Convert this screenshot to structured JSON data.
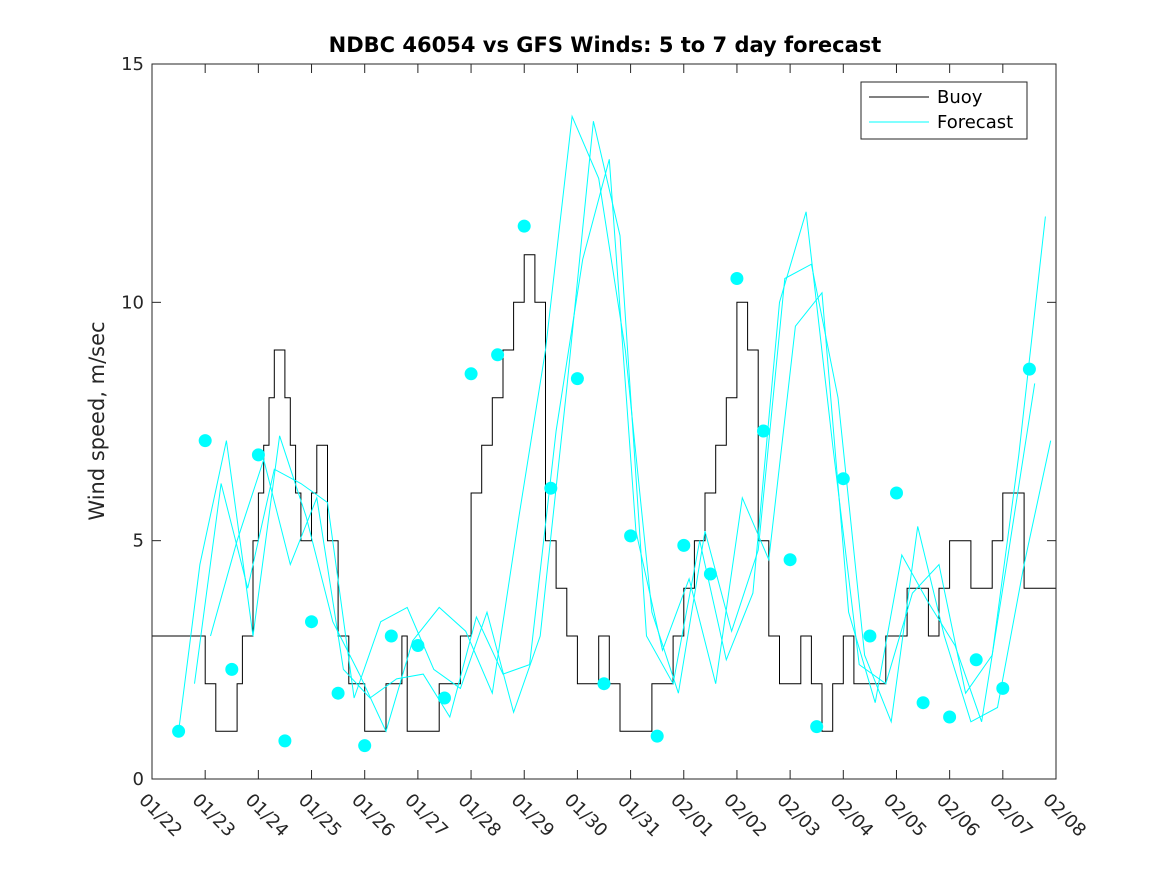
{
  "chart_data": {
    "type": "line",
    "title": "NDBC 46054 vs GFS Winds: 5 to 7 day forecast",
    "xlabel": "",
    "ylabel": "Wind speed, m/sec",
    "ylim": [
      0,
      15
    ],
    "xlim": [
      0,
      17
    ],
    "x_units": "days since 01/22",
    "yticks": [
      0,
      5,
      10,
      15
    ],
    "yticklabels": [
      "0",
      "5",
      "10",
      "15"
    ],
    "xticklabels": [
      "01/22",
      "01/23",
      "01/24",
      "01/25",
      "01/26",
      "01/27",
      "01/28",
      "01/29",
      "01/30",
      "01/31",
      "02/01",
      "02/02",
      "02/03",
      "02/04",
      "02/05",
      "02/06",
      "02/07",
      "02/08"
    ],
    "legend": {
      "location": "top-right",
      "entries": [
        "Buoy",
        "Forecast"
      ]
    },
    "colors": {
      "buoy": "#000000",
      "forecast": "#00ffff",
      "axes": "#262626"
    },
    "series": [
      {
        "name": "Buoy",
        "style": "step",
        "color": "#000000",
        "x": [
          0.0,
          0.3,
          0.6,
          0.9,
          1.0,
          1.2,
          1.4,
          1.6,
          1.7,
          1.9,
          2.0,
          2.1,
          2.2,
          2.3,
          2.5,
          2.6,
          2.7,
          2.8,
          3.0,
          3.1,
          3.2,
          3.3,
          3.5,
          3.7,
          3.9,
          4.0,
          4.2,
          4.4,
          4.6,
          4.7,
          4.8,
          5.0,
          5.2,
          5.4,
          5.6,
          5.8,
          6.0,
          6.2,
          6.4,
          6.6,
          6.8,
          7.0,
          7.2,
          7.4,
          7.6,
          7.8,
          8.0,
          8.2,
          8.4,
          8.6,
          8.8,
          9.0,
          9.2,
          9.4,
          9.6,
          9.8,
          10.0,
          10.2,
          10.4,
          10.6,
          10.8,
          11.0,
          11.2,
          11.4,
          11.6,
          11.8,
          12.0,
          12.2,
          12.4,
          12.6,
          12.8,
          13.0,
          13.2,
          13.4,
          13.6,
          13.8,
          14.0,
          14.2,
          14.4,
          14.6,
          14.8,
          15.0,
          15.2,
          15.4,
          15.6,
          15.8,
          16.0,
          16.2,
          16.4
        ],
        "values": [
          3,
          3,
          3,
          3,
          2,
          1,
          1,
          2,
          3,
          5,
          6,
          7,
          8,
          9,
          8,
          7,
          6,
          5,
          6,
          7,
          7,
          5,
          3,
          2,
          2,
          1,
          1,
          2,
          2,
          3,
          1,
          1,
          1,
          2,
          2,
          3,
          6,
          7,
          8,
          9,
          10,
          11,
          10,
          5,
          4,
          3,
          2,
          2,
          3,
          2,
          1,
          1,
          1,
          2,
          2,
          3,
          4,
          5,
          6,
          7,
          8,
          10,
          9,
          5,
          3,
          2,
          2,
          3,
          2,
          1,
          2,
          3,
          2,
          2,
          2,
          3,
          3,
          4,
          4,
          3,
          4,
          5,
          5,
          4,
          4,
          5,
          6,
          6,
          4
        ]
      },
      {
        "name": "Forecast",
        "style": "line",
        "color": "#00ffff",
        "x": [
          0.5,
          0.9,
          1.4,
          1.9,
          2.4,
          2.9,
          3.4,
          3.9,
          4.4,
          4.9,
          5.4,
          5.9,
          6.4,
          6.9,
          7.4,
          7.9,
          8.4,
          8.9,
          9.4,
          9.9,
          10.4,
          10.9,
          11.4,
          11.9,
          12.4,
          12.9,
          13.4,
          13.9,
          14.4,
          14.9,
          15.4,
          15.9,
          16.4,
          16.9
        ],
        "values": [
          1.0,
          4.5,
          7.1,
          3.0,
          7.2,
          5.5,
          3.3,
          2.2,
          1.0,
          2.9,
          3.6,
          3.1,
          1.8,
          5.5,
          9.0,
          13.9,
          12.6,
          9.0,
          3.5,
          1.8,
          5.2,
          3.1,
          4.8,
          10.5,
          10.8,
          8.0,
          2.6,
          1.2,
          5.3,
          3.0,
          1.2,
          1.5,
          4.5,
          7.1
        ]
      },
      {
        "name": "Forecast",
        "style": "line",
        "color": "#00ffff",
        "x": [
          0.8,
          1.3,
          1.8,
          2.3,
          2.8,
          3.3,
          3.8,
          4.3,
          4.8,
          5.3,
          5.8,
          6.3,
          6.8,
          7.3,
          7.8,
          8.3,
          8.8,
          9.3,
          9.8,
          10.3,
          10.8,
          11.3,
          11.8,
          12.3,
          12.8,
          13.3,
          13.8,
          14.3,
          14.8,
          15.3,
          15.8,
          16.3,
          16.8
        ],
        "values": [
          2.0,
          6.2,
          4.0,
          6.5,
          6.2,
          5.8,
          1.7,
          3.3,
          3.6,
          2.3,
          1.9,
          3.5,
          1.4,
          3.0,
          8.2,
          13.8,
          11.4,
          3.0,
          2.0,
          5.0,
          2.5,
          3.9,
          10.0,
          11.9,
          7.0,
          2.4,
          2.0,
          3.9,
          4.5,
          1.8,
          2.6,
          6.8,
          11.8
        ]
      },
      {
        "name": "Forecast",
        "style": "line",
        "color": "#00ffff",
        "x": [
          1.1,
          1.6,
          2.1,
          2.6,
          3.1,
          3.6,
          4.1,
          4.6,
          5.1,
          5.6,
          6.1,
          6.6,
          7.1,
          7.6,
          8.1,
          8.6,
          9.1,
          9.6,
          10.1,
          10.6,
          11.1,
          11.6,
          12.1,
          12.6,
          13.1,
          13.6,
          14.1,
          14.6,
          15.1,
          15.6,
          16.1,
          16.6
        ],
        "values": [
          3.0,
          5.0,
          6.7,
          4.5,
          5.9,
          2.3,
          1.7,
          2.1,
          2.2,
          1.3,
          3.4,
          2.2,
          2.4,
          7.3,
          10.9,
          13.0,
          5.2,
          2.7,
          4.2,
          2.0,
          5.9,
          4.6,
          9.5,
          10.2,
          3.5,
          1.6,
          4.7,
          3.7,
          2.8,
          1.2,
          4.7,
          8.3
        ]
      }
    ],
    "markers": {
      "name": "Forecast",
      "style": "dot",
      "color": "#00ffff",
      "x": [
        0.5,
        1.0,
        1.5,
        2.0,
        2.5,
        3.0,
        3.5,
        4.0,
        4.5,
        5.0,
        5.5,
        6.0,
        6.5,
        7.0,
        7.5,
        8.0,
        8.5,
        9.0,
        9.5,
        10.0,
        10.5,
        11.0,
        11.5,
        12.0,
        12.5,
        13.0,
        13.5,
        14.0,
        14.5,
        15.0,
        15.5,
        16.0,
        16.5
      ],
      "values": [
        1.0,
        7.1,
        2.3,
        6.8,
        0.8,
        3.3,
        1.8,
        0.7,
        3.0,
        2.8,
        1.7,
        8.5,
        8.9,
        11.6,
        6.1,
        8.4,
        2.0,
        5.1,
        0.9,
        4.9,
        4.3,
        10.5,
        7.3,
        4.6,
        1.1,
        6.3,
        3.0,
        6.0,
        1.6,
        1.3,
        2.5,
        1.9,
        8.6
      ]
    }
  }
}
